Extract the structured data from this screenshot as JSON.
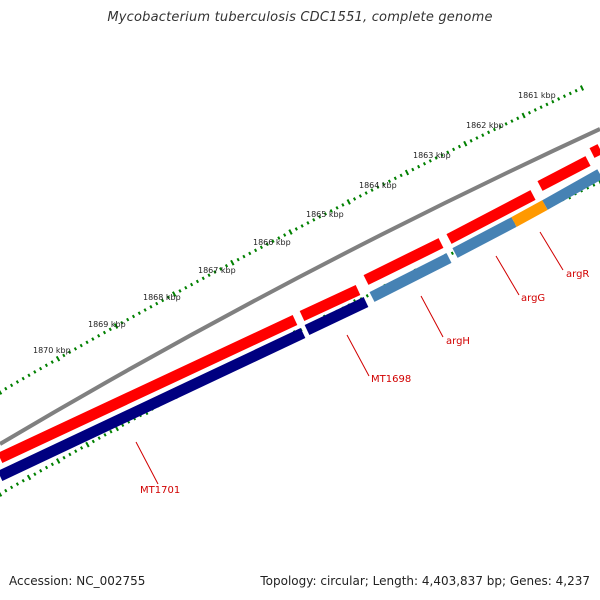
{
  "title": "Mycobacterium tuberculosis CDC1551, complete genome",
  "footer": {
    "accession": "Accession: NC_002755",
    "summary": "Topology: circular; Length: 4,403,837 bp; Genes: 4,237"
  },
  "scale_labels": [
    "1861 kbp",
    "1862 kbp",
    "1863 kbp",
    "1864 kbp",
    "1865 kbp",
    "1866 kbp",
    "1867 kbp",
    "1868 kbp",
    "1869 kbp",
    "1870 kbp"
  ],
  "gene_labels": [
    "argR",
    "argG",
    "argH",
    "MT1698",
    "MT1701"
  ],
  "colors": {
    "backbone": "#808080",
    "cds": "#ff0000",
    "gene_dark": "#000080",
    "gene_steel": "#4682b4",
    "gene_orange": "#ff9900",
    "ticks": "#008000",
    "label": "#d10000"
  }
}
